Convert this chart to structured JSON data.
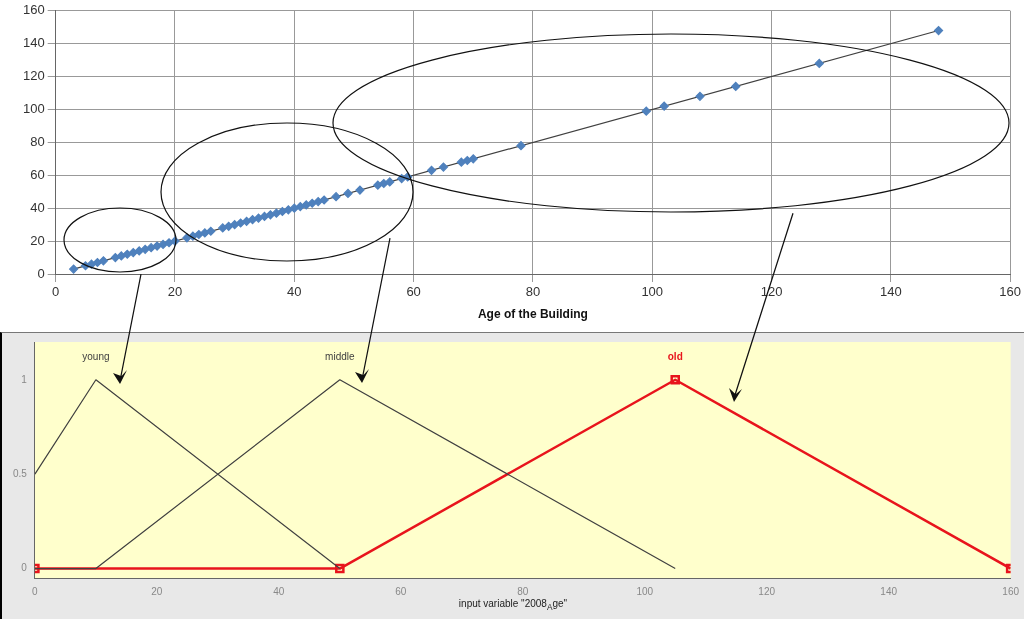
{
  "chart_data": [
    {
      "type": "scatter",
      "xlabel": "Age of the Building",
      "xlim": [
        0,
        160
      ],
      "ylim": [
        0,
        160
      ],
      "xticks": [
        0,
        20,
        40,
        60,
        80,
        100,
        120,
        140,
        160
      ],
      "yticks": [
        0,
        20,
        40,
        60,
        80,
        100,
        120,
        140,
        160
      ],
      "grid": true,
      "series": [
        {
          "color": "#4f81bd",
          "marker": "diamond",
          "x": [
            3,
            5,
            6,
            7,
            8,
            10,
            11,
            12,
            13,
            14,
            15,
            16,
            17,
            18,
            19,
            20,
            22,
            23,
            24,
            25,
            26,
            28,
            29,
            30,
            31,
            32,
            33,
            34,
            35,
            36,
            37,
            38,
            39,
            40,
            41,
            42,
            43,
            44,
            45,
            47,
            49,
            51,
            54,
            55,
            56,
            58,
            59,
            63,
            65,
            68,
            69,
            70,
            78,
            99,
            102,
            108,
            114,
            128,
            148
          ],
          "values": [
            3,
            5,
            6,
            7,
            8,
            10,
            11,
            12,
            13,
            14,
            15,
            16,
            17,
            18,
            19,
            20,
            22,
            23,
            24,
            25,
            26,
            28,
            29,
            30,
            31,
            32,
            33,
            34,
            35,
            36,
            37,
            38,
            39,
            40,
            41,
            42,
            43,
            44,
            45,
            47,
            49,
            51,
            54,
            55,
            56,
            58,
            59,
            63,
            65,
            68,
            69,
            70,
            78,
            99,
            102,
            108,
            114,
            128,
            148
          ]
        },
        {
          "type": "line",
          "color": "#404040",
          "marker": "none",
          "x": [
            3,
            148
          ],
          "values": [
            3,
            148
          ]
        }
      ]
    },
    {
      "type": "line",
      "xlabel": "input variable \"2008$_{A}$ge\"",
      "xlim": [
        0,
        160
      ],
      "ylim": [
        -0.05,
        1.2
      ],
      "xticks": [
        0,
        20,
        40,
        60,
        80,
        100,
        120,
        140,
        160
      ],
      "yticks": [
        0,
        0.5,
        1
      ],
      "series": [
        {
          "name": "young",
          "color": "#404040",
          "marker": "none",
          "x": [
            0,
            10,
            50
          ],
          "values": [
            0.5,
            1,
            0
          ]
        },
        {
          "name": "middle",
          "color": "#404040",
          "marker": "none",
          "x": [
            0,
            10,
            50,
            105
          ],
          "values": [
            0,
            0,
            1,
            0
          ]
        },
        {
          "name": "old",
          "color": "#e8141c",
          "marker": "square",
          "x": [
            0,
            50,
            105,
            160
          ],
          "values": [
            0,
            0,
            1,
            0
          ]
        }
      ]
    }
  ]
}
